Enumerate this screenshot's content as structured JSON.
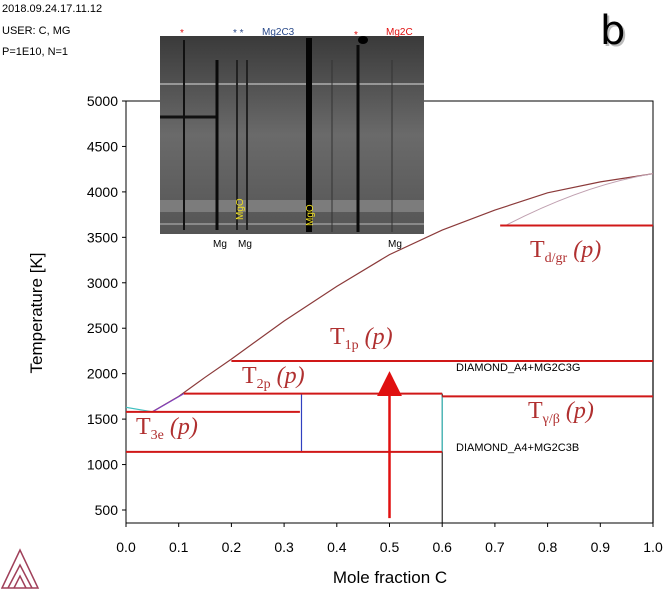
{
  "meta": {
    "timestamp": "2018.09.24.17.11.12",
    "user": "USER: C, MG",
    "params": "P=1E10, N=1",
    "panel_label": "b"
  },
  "chart_data": {
    "type": "line",
    "xlabel": "Mole fraction C",
    "ylabel": "Temperature [K]",
    "xlim": [
      0.0,
      1.0
    ],
    "ylim": [
      270,
      5000
    ],
    "xticks": [
      "0.0",
      "0.1",
      "0.2",
      "0.3",
      "0.4",
      "0.5",
      "0.6",
      "0.7",
      "0.8",
      "0.9",
      "1.0"
    ],
    "yticks": [
      500,
      1000,
      1500,
      2000,
      2500,
      3000,
      3500,
      4000,
      4500,
      5000
    ],
    "grid": false,
    "liquidus": {
      "x": [
        0.05,
        0.1,
        0.15,
        0.2,
        0.3,
        0.4,
        0.5,
        0.6,
        0.7,
        0.8,
        0.9,
        1.0
      ],
      "y": [
        1580,
        1750,
        1960,
        2160,
        2580,
        2960,
        3310,
        3580,
        3800,
        3990,
        4110,
        4200
      ]
    },
    "transitions": [
      {
        "id": "d_gr",
        "main": "T",
        "sub": "d/gr",
        "suffix": "(p)",
        "y": 3630,
        "x": [
          0.71,
          1.0
        ]
      },
      {
        "id": "1p",
        "main": "T",
        "sub": "1p",
        "suffix": "(p)",
        "y": 2140,
        "x": [
          0.2,
          1.0
        ]
      },
      {
        "id": "2p",
        "main": "T",
        "sub": "2p",
        "suffix": "(p)",
        "y": 1780,
        "x": [
          0.11,
          0.6
        ]
      },
      {
        "id": "g_b",
        "main": "T",
        "sub": "γ/β",
        "suffix": "(p)",
        "y": 1750,
        "x": [
          0.6,
          1.0
        ]
      },
      {
        "id": "3e",
        "main": "T",
        "sub": "3e",
        "suffix": "(p)",
        "y": 1580,
        "x": [
          0.0,
          0.33
        ]
      },
      {
        "id": "low",
        "main": "",
        "sub": "",
        "suffix": "",
        "y": 1140,
        "x": [
          0.0,
          0.6
        ]
      }
    ],
    "phase_labels": [
      "DIAMOND_A4+MG2C3G",
      "DIAMOND_A4+MG2C3B"
    ],
    "arrow": {
      "x": 0.5,
      "y_from": 410,
      "y_to": 2000
    },
    "colors": {
      "transition": "#d01818",
      "liquidus": "#8b3a3a",
      "arrow": "#e01010",
      "lines": "#000000"
    }
  },
  "xrd_inset": {
    "top_labels": [
      "*",
      "* *",
      "Mg2C3",
      "*",
      "Mg2C"
    ],
    "bottom_labels": [
      "Mg",
      "Mg",
      "Mg"
    ],
    "vertical_labels": [
      "MgO",
      "MgO"
    ],
    "colors": {
      "star": "#e01010",
      "mg2c3": "#2a4a8a",
      "mg2c": "#e01010",
      "mgo": "#f0e020"
    }
  }
}
